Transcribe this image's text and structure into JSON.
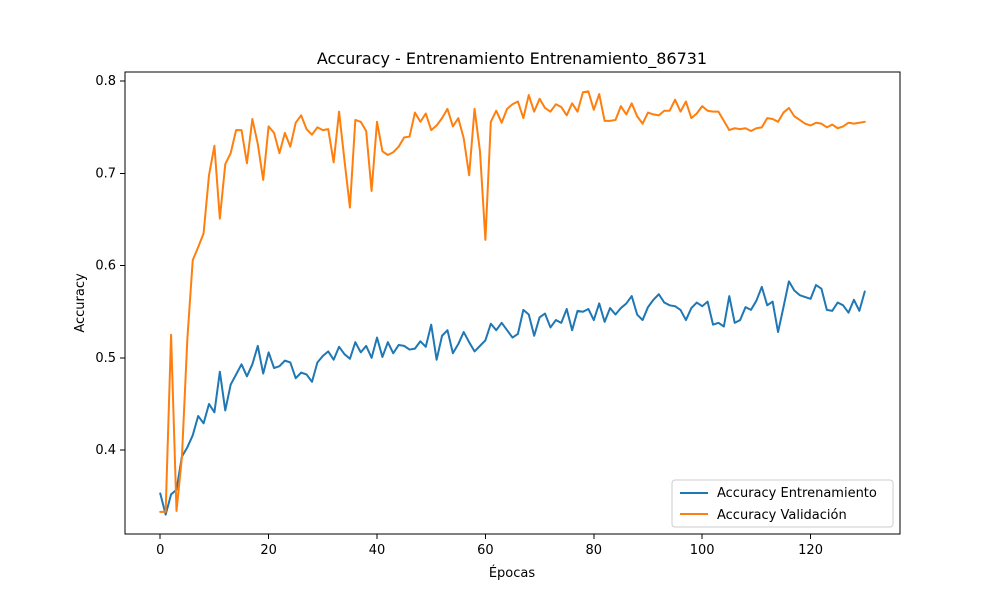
{
  "chart_data": {
    "type": "line",
    "title": "Accuracy - Entrenamiento Entrenamiento_86731",
    "xlabel": "Épocas",
    "ylabel": "Accuracy",
    "xlim": [
      -6.5,
      136.5
    ],
    "ylim": [
      0.309,
      0.81
    ],
    "x_ticks": [
      0,
      20,
      40,
      60,
      80,
      100,
      120
    ],
    "y_ticks": [
      0.4,
      0.5,
      0.6,
      0.7,
      0.8
    ],
    "y_tick_labels": [
      "0.4",
      "0.5",
      "0.6",
      "0.7",
      "0.8"
    ],
    "grid": false,
    "legend_position": "lower-right",
    "colors": {
      "train": "#1f77b4",
      "validation": "#ff7f0e"
    },
    "series": [
      {
        "name": "Accuracy Entrenamiento",
        "color": "#1f77b4",
        "x": [
          0,
          1,
          2,
          3,
          4,
          5,
          6,
          7,
          8,
          9,
          10,
          11,
          12,
          13,
          14,
          15,
          16,
          17,
          18,
          19,
          20,
          21,
          22,
          23,
          24,
          25,
          26,
          27,
          28,
          29,
          30,
          31,
          32,
          33,
          34,
          35,
          36,
          37,
          38,
          39,
          40,
          41,
          42,
          43,
          44,
          45,
          46,
          47,
          48,
          49,
          50,
          51,
          52,
          53,
          54,
          55,
          56,
          57,
          58,
          59,
          60,
          61,
          62,
          63,
          64,
          65,
          66,
          67,
          68,
          69,
          70,
          71,
          72,
          73,
          74,
          75,
          76,
          77,
          78,
          79,
          80,
          81,
          82,
          83,
          84,
          85,
          86,
          87,
          88,
          89,
          90,
          91,
          92,
          93,
          94,
          95,
          96,
          97,
          98,
          99,
          100,
          101,
          102,
          103,
          104,
          105,
          106,
          107,
          108,
          109,
          110,
          111,
          112,
          113,
          114,
          115,
          116,
          117,
          118,
          119,
          120,
          121,
          122,
          123,
          124,
          125,
          126,
          127,
          128,
          129,
          130
        ],
        "values": [
          0.353,
          0.33,
          0.352,
          0.357,
          0.393,
          0.403,
          0.416,
          0.437,
          0.429,
          0.45,
          0.441,
          0.485,
          0.443,
          0.471,
          0.482,
          0.493,
          0.48,
          0.493,
          0.513,
          0.483,
          0.506,
          0.489,
          0.491,
          0.497,
          0.495,
          0.478,
          0.484,
          0.482,
          0.474,
          0.495,
          0.502,
          0.507,
          0.498,
          0.512,
          0.504,
          0.499,
          0.517,
          0.506,
          0.513,
          0.5,
          0.522,
          0.501,
          0.517,
          0.505,
          0.514,
          0.513,
          0.509,
          0.51,
          0.518,
          0.512,
          0.536,
          0.498,
          0.524,
          0.53,
          0.505,
          0.515,
          0.528,
          0.517,
          0.507,
          0.513,
          0.519,
          0.537,
          0.53,
          0.538,
          0.53,
          0.522,
          0.526,
          0.552,
          0.547,
          0.524,
          0.544,
          0.548,
          0.533,
          0.541,
          0.538,
          0.553,
          0.53,
          0.551,
          0.55,
          0.553,
          0.541,
          0.559,
          0.539,
          0.554,
          0.547,
          0.554,
          0.559,
          0.567,
          0.547,
          0.541,
          0.555,
          0.563,
          0.569,
          0.56,
          0.557,
          0.556,
          0.552,
          0.541,
          0.554,
          0.56,
          0.556,
          0.561,
          0.536,
          0.538,
          0.534,
          0.567,
          0.538,
          0.541,
          0.555,
          0.552,
          0.562,
          0.577,
          0.557,
          0.561,
          0.528,
          0.555,
          0.583,
          0.573,
          0.568,
          0.566,
          0.564,
          0.579,
          0.575,
          0.552,
          0.551,
          0.56,
          0.557,
          0.549,
          0.563,
          0.551,
          0.572
        ]
      },
      {
        "name": "Accuracy Validación",
        "color": "#ff7f0e",
        "x": [
          0,
          1,
          2,
          3,
          4,
          5,
          6,
          7,
          8,
          9,
          10,
          11,
          12,
          13,
          14,
          15,
          16,
          17,
          18,
          19,
          20,
          21,
          22,
          23,
          24,
          25,
          26,
          27,
          28,
          29,
          30,
          31,
          32,
          33,
          34,
          35,
          36,
          37,
          38,
          39,
          40,
          41,
          42,
          43,
          44,
          45,
          46,
          47,
          48,
          49,
          50,
          51,
          52,
          53,
          54,
          55,
          56,
          57,
          58,
          59,
          60,
          61,
          62,
          63,
          64,
          65,
          66,
          67,
          68,
          69,
          70,
          71,
          72,
          73,
          74,
          75,
          76,
          77,
          78,
          79,
          80,
          81,
          82,
          83,
          84,
          85,
          86,
          87,
          88,
          89,
          90,
          91,
          92,
          93,
          94,
          95,
          96,
          97,
          98,
          99,
          100,
          101,
          102,
          103,
          104,
          105,
          106,
          107,
          108,
          109,
          110,
          111,
          112,
          113,
          114,
          115,
          116,
          117,
          118,
          119,
          120,
          121,
          122,
          123,
          124,
          125,
          126,
          127,
          128,
          129,
          130
        ],
        "values": [
          0.333,
          0.333,
          0.525,
          0.334,
          0.392,
          0.52,
          0.606,
          0.62,
          0.635,
          0.698,
          0.73,
          0.651,
          0.71,
          0.722,
          0.747,
          0.747,
          0.711,
          0.759,
          0.732,
          0.693,
          0.751,
          0.744,
          0.722,
          0.744,
          0.729,
          0.755,
          0.763,
          0.748,
          0.742,
          0.75,
          0.747,
          0.748,
          0.712,
          0.767,
          0.714,
          0.663,
          0.758,
          0.756,
          0.746,
          0.681,
          0.756,
          0.724,
          0.72,
          0.723,
          0.729,
          0.739,
          0.74,
          0.766,
          0.756,
          0.765,
          0.747,
          0.752,
          0.76,
          0.77,
          0.751,
          0.76,
          0.738,
          0.698,
          0.77,
          0.724,
          0.628,
          0.756,
          0.768,
          0.755,
          0.77,
          0.775,
          0.778,
          0.76,
          0.785,
          0.767,
          0.781,
          0.771,
          0.767,
          0.775,
          0.772,
          0.763,
          0.776,
          0.767,
          0.788,
          0.789,
          0.769,
          0.786,
          0.757,
          0.757,
          0.758,
          0.773,
          0.764,
          0.776,
          0.762,
          0.754,
          0.766,
          0.764,
          0.763,
          0.768,
          0.768,
          0.78,
          0.767,
          0.778,
          0.76,
          0.765,
          0.773,
          0.768,
          0.767,
          0.767,
          0.757,
          0.747,
          0.749,
          0.748,
          0.749,
          0.746,
          0.749,
          0.75,
          0.76,
          0.759,
          0.756,
          0.766,
          0.771,
          0.762,
          0.758,
          0.754,
          0.752,
          0.755,
          0.754,
          0.75,
          0.753,
          0.749,
          0.751,
          0.755,
          0.754,
          0.755,
          0.756
        ]
      }
    ]
  }
}
